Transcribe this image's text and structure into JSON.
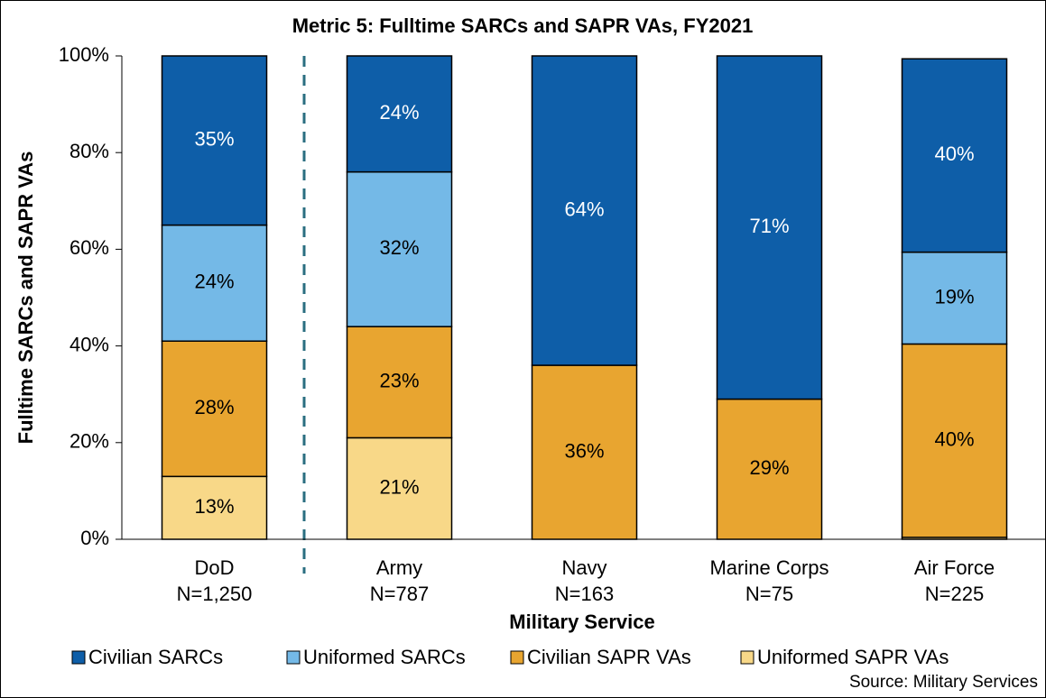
{
  "chart_data": {
    "type": "stacked_bar",
    "title": "Metric 5: Fulltime SARCs and SAPR VAs, FY2021",
    "y_label": "Fulltime SARCs and SAPR VAs",
    "x_label": "Military Service",
    "source": "Source: Military Services",
    "categories": [
      "DoD",
      "Army",
      "Navy",
      "Marine Corps",
      "Air Force"
    ],
    "category_counts": [
      "N=1,250",
      "N=787",
      "N=163",
      "N=75",
      "N=225"
    ],
    "series": [
      {
        "name": "Civilian SARCs",
        "color": "#0e5ea8",
        "values": [
          35,
          24,
          64,
          71,
          40
        ],
        "value_labels": [
          "35%",
          "24%",
          "64%",
          "71%",
          "40%"
        ]
      },
      {
        "name": "Uniformed SARCs",
        "color": "#74b9e7",
        "values": [
          24,
          32,
          0,
          0,
          19
        ],
        "value_labels": [
          "24%",
          "32%",
          null,
          null,
          "19%"
        ]
      },
      {
        "name": "Civilian SAPR VAs",
        "color": "#e8a530",
        "values": [
          28,
          23,
          36,
          29,
          40
        ],
        "value_labels": [
          "28%",
          "23%",
          "36%",
          "29%",
          "40%"
        ]
      },
      {
        "name": "Uniformed SAPR VAs",
        "color": "#f8d888",
        "values": [
          13,
          21,
          0,
          0,
          0.4
        ],
        "value_labels": [
          "13%",
          "21%",
          null,
          null,
          null
        ]
      }
    ],
    "ylim": [
      0,
      100
    ],
    "yticks": [
      {
        "value": 0,
        "label": "0%"
      },
      {
        "value": 20,
        "label": "20%"
      },
      {
        "value": 40,
        "label": "40%"
      },
      {
        "value": 60,
        "label": "60%"
      },
      {
        "value": 80,
        "label": "80%"
      },
      {
        "value": 100,
        "label": "100%"
      }
    ],
    "grid": false
  }
}
